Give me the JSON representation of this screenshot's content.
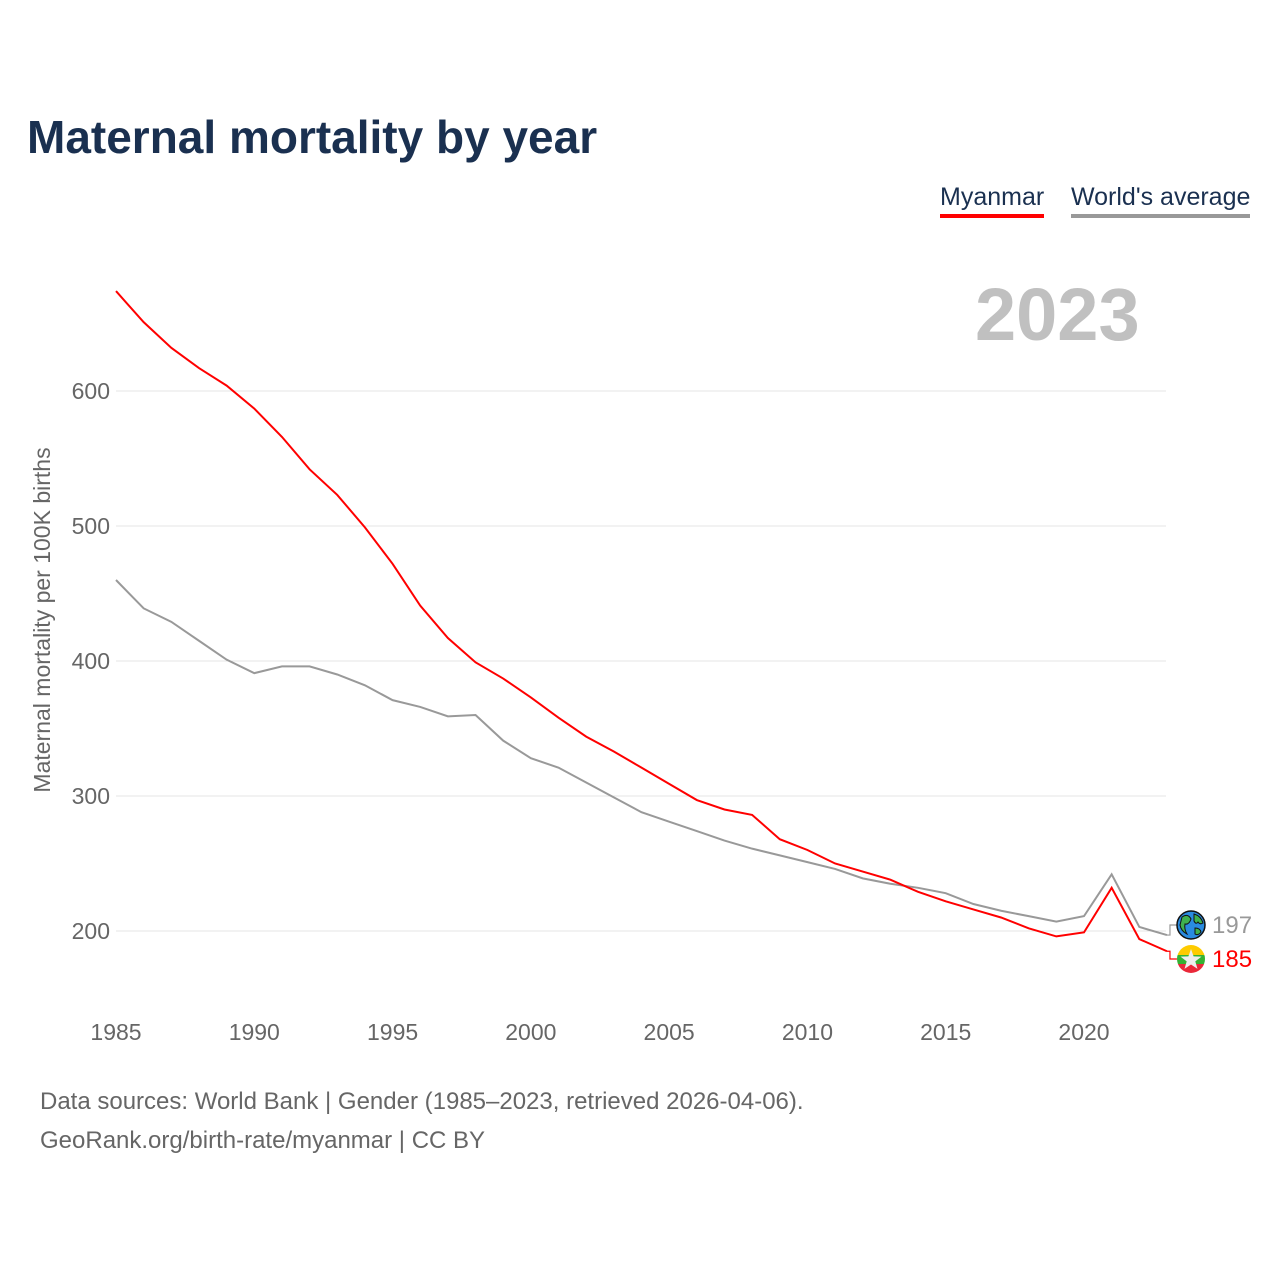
{
  "title": "Maternal mortality by year",
  "legend": {
    "myanmar": "Myanmar",
    "world": "World's average"
  },
  "year_label": "2023",
  "footer": {
    "line1": "Data sources: World Bank | Gender (1985–2023, retrieved 2026-04-06).",
    "line2": "GeoRank.org/birth-rate/myanmar | CC BY"
  },
  "chart_data": {
    "type": "line",
    "title": "Maternal mortality by year",
    "xlabel": "",
    "ylabel": "Maternal mortality per 100K births",
    "xlim": [
      1985,
      2023
    ],
    "ylim": [
      150,
      700
    ],
    "xticks": [
      "1985",
      "1990",
      "1995",
      "2000",
      "2005",
      "2010",
      "2015",
      "2020"
    ],
    "yticks": [
      "200",
      "300",
      "400",
      "500",
      "600"
    ],
    "grid": true,
    "legend_position": "top-right",
    "x": [
      1985,
      1986,
      1987,
      1988,
      1989,
      1990,
      1991,
      1992,
      1993,
      1994,
      1995,
      1996,
      1997,
      1998,
      1999,
      2000,
      2001,
      2002,
      2003,
      2004,
      2005,
      2006,
      2007,
      2008,
      2009,
      2010,
      2011,
      2012,
      2013,
      2014,
      2015,
      2016,
      2017,
      2018,
      2019,
      2020,
      2021,
      2022,
      2023
    ],
    "series": [
      {
        "name": "Myanmar",
        "color": "#ff0000",
        "end_label": "185",
        "values": [
          674,
          651,
          632,
          617,
          604,
          587,
          566,
          542,
          523,
          499,
          472,
          441,
          417,
          399,
          387,
          373,
          358,
          344,
          333,
          321,
          309,
          297,
          290,
          286,
          268,
          260,
          250,
          244,
          238,
          229,
          222,
          216,
          210,
          202,
          196,
          199,
          232,
          194,
          185
        ]
      },
      {
        "name": "World's average",
        "color": "#999999",
        "end_label": "197",
        "values": [
          460,
          439,
          429,
          415,
          401,
          391,
          396,
          396,
          390,
          382,
          371,
          366,
          359,
          360,
          341,
          328,
          321,
          310,
          299,
          288,
          281,
          274,
          267,
          261,
          256,
          251,
          246,
          239,
          235,
          232,
          228,
          220,
          215,
          211,
          207,
          211,
          242,
          203,
          197
        ]
      }
    ]
  }
}
